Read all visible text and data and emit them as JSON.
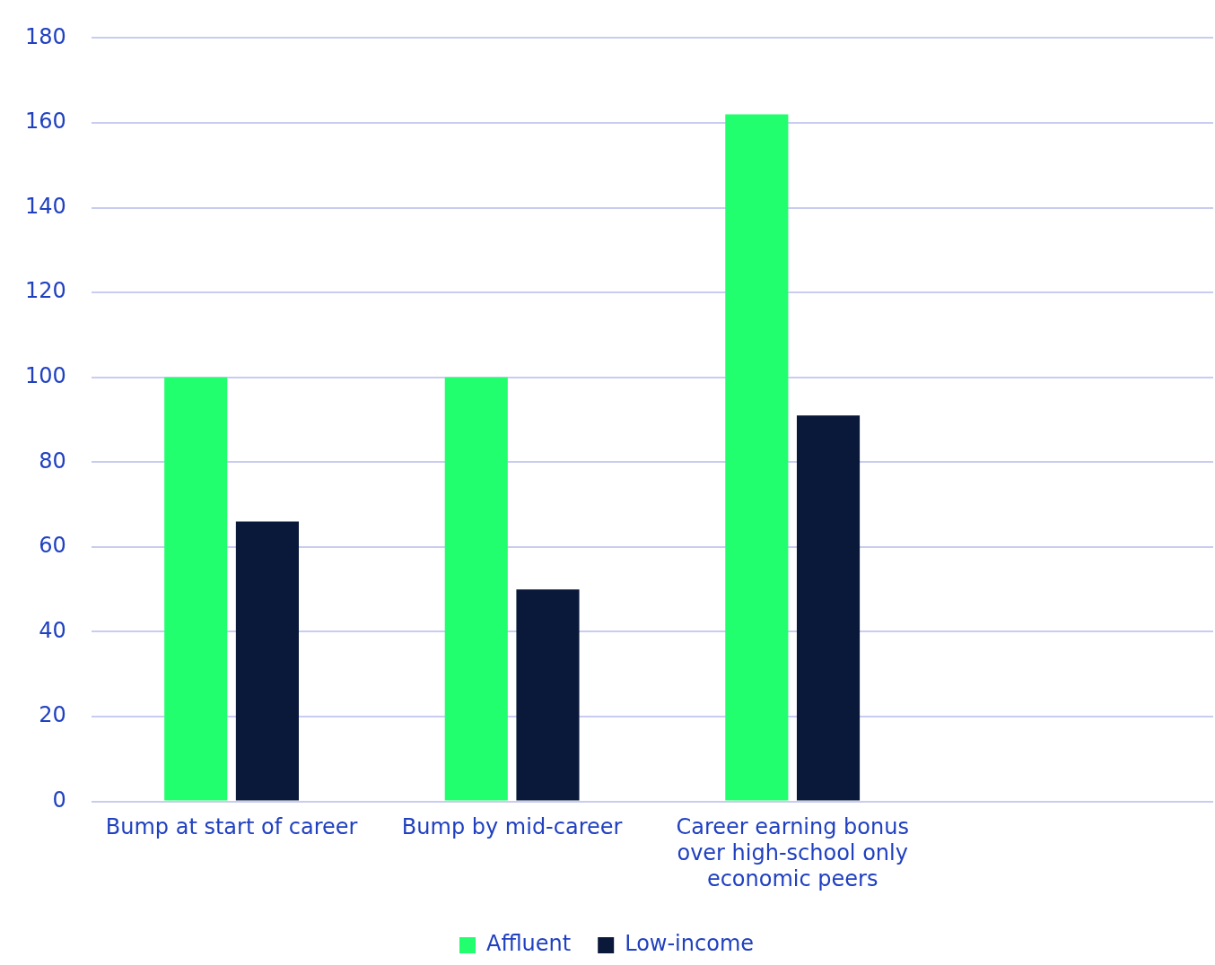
{
  "chart_data": {
    "type": "bar",
    "categories": [
      "Bump at start of career",
      "Bump by mid-career",
      "Career earning bonus over high-school only economic peers",
      null
    ],
    "series": [
      {
        "name": "Affluent",
        "color": "#22ff6e",
        "values": [
          100,
          100,
          162,
          null
        ]
      },
      {
        "name": "Low-income",
        "color": "#0a183a",
        "values": [
          66,
          50,
          91,
          null
        ]
      }
    ],
    "ylim": [
      0,
      180
    ],
    "yticks": [
      0,
      20,
      40,
      60,
      80,
      100,
      120,
      140,
      160,
      180
    ],
    "grid": "y",
    "legend": "bottom"
  }
}
